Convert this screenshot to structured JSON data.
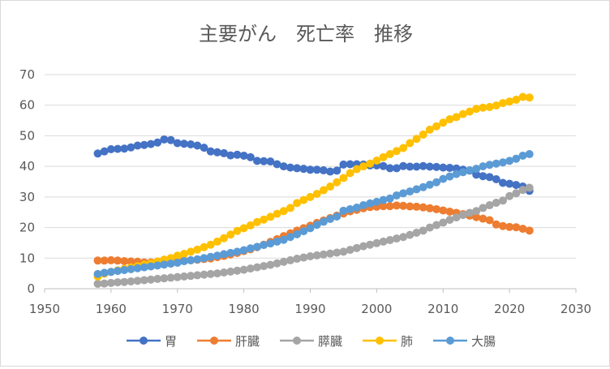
{
  "chart_data": {
    "type": "line",
    "title": "主要がん　死亡率　推移",
    "xlabel": "",
    "ylabel": "",
    "xlim": [
      1950,
      2030
    ],
    "ylim": [
      0,
      70
    ],
    "x_ticks": [
      "1950",
      "1960",
      "1970",
      "1980",
      "1990",
      "2000",
      "2010",
      "2020",
      "2030"
    ],
    "y_ticks": [
      "0",
      "10",
      "20",
      "30",
      "40",
      "50",
      "60",
      "70"
    ],
    "grid": "horizontal",
    "legend_position": "bottom",
    "x": [
      1958,
      1959,
      1960,
      1961,
      1962,
      1963,
      1964,
      1965,
      1966,
      1967,
      1968,
      1969,
      1970,
      1971,
      1972,
      1973,
      1974,
      1975,
      1976,
      1977,
      1978,
      1979,
      1980,
      1981,
      1982,
      1983,
      1984,
      1985,
      1986,
      1987,
      1988,
      1989,
      1990,
      1991,
      1992,
      1993,
      1994,
      1995,
      1996,
      1997,
      1998,
      1999,
      2000,
      2001,
      2002,
      2003,
      2004,
      2005,
      2006,
      2007,
      2008,
      2009,
      2010,
      2011,
      2012,
      2013,
      2014,
      2015,
      2016,
      2017,
      2018,
      2019,
      2020,
      2021,
      2022,
      2023
    ],
    "series": [
      {
        "name": "胃",
        "color": "#4472c4",
        "values": [
          44.2,
          44.9,
          45.6,
          45.7,
          45.8,
          46.2,
          46.8,
          47.0,
          47.3,
          47.8,
          48.8,
          48.6,
          47.6,
          47.4,
          47.2,
          46.8,
          46.1,
          44.9,
          44.6,
          44.3,
          43.6,
          43.8,
          43.5,
          43.0,
          41.8,
          41.7,
          41.6,
          40.7,
          40.0,
          39.6,
          39.4,
          39.2,
          38.9,
          38.9,
          38.7,
          38.3,
          38.6,
          40.6,
          40.7,
          40.7,
          40.6,
          40.3,
          40.3,
          40.1,
          39.4,
          39.4,
          40.1,
          39.9,
          39.9,
          40.1,
          39.9,
          39.8,
          39.6,
          39.5,
          39.3,
          38.9,
          38.6,
          37.3,
          36.8,
          36.5,
          35.8,
          34.6,
          34.3,
          33.9,
          33.4,
          32.0
        ]
      },
      {
        "name": "肝臓",
        "color": "#ed7d31",
        "values": [
          9.2,
          9.2,
          9.3,
          9.2,
          9.0,
          8.9,
          8.8,
          8.6,
          8.6,
          8.8,
          8.7,
          9.0,
          9.0,
          9.2,
          9.3,
          9.5,
          9.7,
          9.9,
          10.3,
          10.7,
          11.2,
          11.7,
          12.3,
          12.9,
          13.6,
          14.4,
          15.3,
          16.2,
          17.2,
          18.1,
          19.0,
          19.8,
          20.6,
          21.5,
          22.3,
          23.1,
          23.9,
          24.6,
          25.3,
          25.8,
          26.3,
          26.7,
          26.8,
          27.0,
          27.0,
          27.2,
          27.1,
          26.9,
          26.8,
          26.6,
          26.3,
          26.0,
          25.6,
          25.2,
          24.8,
          24.4,
          23.9,
          23.4,
          22.9,
          22.4,
          21.0,
          20.5,
          20.2,
          20.1,
          19.6,
          19.0
        ]
      },
      {
        "name": "膵臓",
        "color": "#a5a5a5",
        "values": [
          1.6,
          1.7,
          1.9,
          2.1,
          2.2,
          2.4,
          2.6,
          2.8,
          3.0,
          3.2,
          3.4,
          3.6,
          3.8,
          4.0,
          4.2,
          4.4,
          4.6,
          4.8,
          5.0,
          5.3,
          5.6,
          5.9,
          6.2,
          6.6,
          7.0,
          7.4,
          7.8,
          8.3,
          8.8,
          9.3,
          9.8,
          10.2,
          10.6,
          10.9,
          11.2,
          11.5,
          11.8,
          12.1,
          12.7,
          13.3,
          13.9,
          14.4,
          14.9,
          15.4,
          15.9,
          16.4,
          16.9,
          17.6,
          18.3,
          19.0,
          20.0,
          20.8,
          21.6,
          22.5,
          23.3,
          24.1,
          24.8,
          25.4,
          26.4,
          27.3,
          28.1,
          28.8,
          30.3,
          31.2,
          32.3,
          33.0
        ]
      },
      {
        "name": "肺",
        "color": "#ffc000",
        "values": [
          4.0,
          4.9,
          5.5,
          6.0,
          6.5,
          7.0,
          7.4,
          7.9,
          8.3,
          8.9,
          9.5,
          10.0,
          10.8,
          11.4,
          12.1,
          12.8,
          13.6,
          14.4,
          15.4,
          16.5,
          17.7,
          18.9,
          19.8,
          20.7,
          21.8,
          22.6,
          23.5,
          24.5,
          25.4,
          26.4,
          28.0,
          29.0,
          30.0,
          31.0,
          32.2,
          33.4,
          34.8,
          36.2,
          37.8,
          39.1,
          40.0,
          40.9,
          41.9,
          43.0,
          44.0,
          45.0,
          46.0,
          47.6,
          49.0,
          50.4,
          52.0,
          53.1,
          54.3,
          55.4,
          56.1,
          57.1,
          57.9,
          58.8,
          59.2,
          59.4,
          59.9,
          60.7,
          61.2,
          61.8,
          62.7,
          62.5
        ]
      },
      {
        "name": "大腸",
        "color": "#5b9bd5",
        "values": [
          4.8,
          5.2,
          5.5,
          5.8,
          6.1,
          6.4,
          6.7,
          7.0,
          7.3,
          7.6,
          7.9,
          8.2,
          8.5,
          9.0,
          9.3,
          9.6,
          10.0,
          10.4,
          10.8,
          11.3,
          11.7,
          12.1,
          12.6,
          13.2,
          13.7,
          14.3,
          14.8,
          15.4,
          16.0,
          16.9,
          17.8,
          18.8,
          19.8,
          20.9,
          21.9,
          22.8,
          23.6,
          25.5,
          26.0,
          26.5,
          27.3,
          27.9,
          28.4,
          29.0,
          29.5,
          30.5,
          31.2,
          31.8,
          32.5,
          33.2,
          34.0,
          34.8,
          35.9,
          36.7,
          37.5,
          38.1,
          38.7,
          39.2,
          40.0,
          40.5,
          40.9,
          41.3,
          41.8,
          42.5,
          43.5,
          44.0
        ]
      }
    ]
  }
}
